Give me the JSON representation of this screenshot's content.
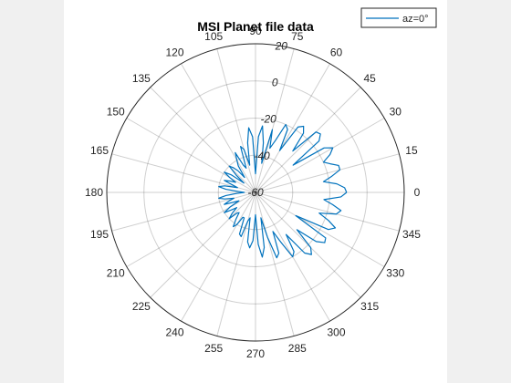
{
  "chart_data": {
    "type": "line",
    "title": "MSI Planet file data",
    "legend": {
      "entries": [
        "az=0°"
      ],
      "placement": "top-right"
    },
    "series_color": "#0072bd",
    "theta_ticks_deg": [
      0,
      15,
      30,
      45,
      60,
      75,
      90,
      105,
      120,
      135,
      150,
      165,
      180,
      195,
      210,
      225,
      240,
      255,
      270,
      285,
      300,
      315,
      330,
      345
    ],
    "r_ticks": [
      -60,
      -40,
      -20,
      0,
      20
    ],
    "r_tick_labels": [
      "-60",
      "-40",
      "-20",
      "0",
      "20"
    ],
    "r_range": [
      -60,
      20
    ],
    "r_label_angle_deg": 80,
    "grid": true,
    "series": [
      {
        "name": "az=0°",
        "theta_deg": [
          0,
          3,
          6,
          9,
          12,
          15,
          18,
          21,
          24,
          27,
          30,
          33,
          36,
          39,
          42,
          45,
          48,
          51,
          54,
          57,
          60,
          63,
          66,
          69,
          72,
          75,
          78,
          81,
          84,
          87,
          90,
          93,
          96,
          99,
          102,
          105,
          108,
          111,
          114,
          117,
          120,
          123,
          126,
          129,
          132,
          135,
          138,
          141,
          144,
          147,
          150,
          153,
          156,
          159,
          162,
          165,
          168,
          171,
          174,
          177,
          180,
          183,
          186,
          189,
          192,
          195,
          198,
          201,
          204,
          207,
          210,
          213,
          216,
          219,
          222,
          225,
          228,
          231,
          234,
          237,
          240,
          243,
          246,
          249,
          252,
          255,
          258,
          261,
          264,
          267,
          270,
          273,
          276,
          279,
          282,
          285,
          288,
          291,
          294,
          297,
          300,
          303,
          306,
          309,
          312,
          315,
          318,
          321,
          324,
          327,
          330,
          333,
          336,
          339,
          342,
          345,
          348,
          351,
          354,
          357,
          360
        ],
        "r": [
          -11,
          -12,
          -16,
          -23,
          -18,
          -13,
          -13,
          -17,
          -20,
          -15,
          -12,
          -16,
          -35,
          -16,
          -13,
          -14,
          -30,
          -19,
          -16,
          -18,
          -34,
          -22,
          -20,
          -30,
          -35,
          -25,
          -44,
          -33,
          -24,
          -30,
          -50,
          -30,
          -25,
          -33,
          -45,
          -36,
          -34,
          -46,
          -44,
          -36,
          -40,
          -43,
          -50,
          -45,
          -42,
          -40,
          -46,
          -52,
          -44,
          -40,
          -44,
          -48,
          -45,
          -42,
          -47,
          -50,
          -43,
          -40,
          -44,
          -51,
          -54,
          -50,
          -44,
          -40,
          -43,
          -48,
          -45,
          -42,
          -47,
          -50,
          -44,
          -40,
          -44,
          -47,
          -43,
          -40,
          -45,
          -46,
          -42,
          -38,
          -40,
          -45,
          -45,
          -36,
          -35,
          -44,
          -46,
          -33,
          -30,
          -34,
          -48,
          -32,
          -25,
          -30,
          -46,
          -35,
          -23,
          -25,
          -37,
          -30,
          -20,
          -22,
          -32,
          -18,
          -15,
          -18,
          -30,
          -18,
          -14,
          -15,
          -35,
          -16,
          -13,
          -18,
          -24,
          -15,
          -13,
          -18,
          -23,
          -14,
          -11
        ]
      }
    ]
  }
}
